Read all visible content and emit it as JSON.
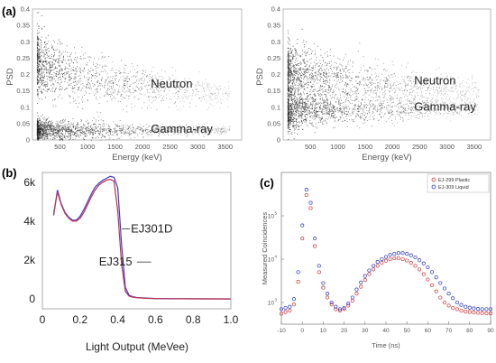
{
  "chart_data": [
    {
      "type": "scatter",
      "panel_label": "(a)",
      "xlabel": "Energy (keV)",
      "ylabel": "PSD",
      "xlim": [
        0,
        3800
      ],
      "ylim": [
        0,
        0.4
      ],
      "x_ticks": [
        "500",
        "1000",
        "1500",
        "2000",
        "2500",
        "3000",
        "3500"
      ],
      "x_tick_values": [
        500,
        1000,
        1500,
        2000,
        2500,
        3000,
        3500
      ],
      "y_ticks": [
        "0",
        "0.05",
        "0.1",
        "0.15",
        "0.2",
        "0.25",
        "0.3",
        "0.35",
        "0.4"
      ],
      "y_tick_values": [
        0,
        0.05,
        0.1,
        0.15,
        0.2,
        0.25,
        0.3,
        0.35,
        0.4
      ],
      "bands": [
        {
          "name": "Neutron",
          "center_start": 0.24,
          "center_end": 0.14,
          "spread_start": 0.055,
          "spread_end": 0.018,
          "point_count": 1500
        },
        {
          "name": "Gamma-ray",
          "center_start": 0.03,
          "center_end": 0.03,
          "spread_start": 0.02,
          "spread_end": 0.006,
          "point_count": 1700
        }
      ],
      "annotations": [
        {
          "text": "Neutron",
          "x": 2150,
          "y": 0.16
        },
        {
          "text": "Gamma-ray",
          "x": 2150,
          "y": 0.022
        }
      ]
    },
    {
      "type": "scatter",
      "xlabel": "Energy (keV)",
      "ylabel": "PSD",
      "xlim": [
        0,
        3800
      ],
      "ylim": [
        0,
        0.4
      ],
      "x_ticks": [
        "500",
        "1000",
        "1500",
        "2000",
        "2500",
        "3000",
        "3500"
      ],
      "x_tick_values": [
        500,
        1000,
        1500,
        2000,
        2500,
        3000,
        3500
      ],
      "y_ticks": [
        "0",
        "0.05",
        "0.1",
        "0.15",
        "0.2",
        "0.25",
        "0.3",
        "0.35",
        "0.4"
      ],
      "y_tick_values": [
        0,
        0.05,
        0.1,
        0.15,
        0.2,
        0.25,
        0.3,
        0.35,
        0.4
      ],
      "bands": [
        {
          "name": "Neutron",
          "center_start": 0.22,
          "center_end": 0.15,
          "spread_start": 0.05,
          "spread_end": 0.02,
          "point_count": 1500
        },
        {
          "name": "Gamma-ray",
          "center_start": 0.09,
          "center_end": 0.1,
          "spread_start": 0.035,
          "spread_end": 0.012,
          "point_count": 1700
        }
      ],
      "annotations": [
        {
          "text": "Neutron",
          "x": 2400,
          "y": 0.17
        },
        {
          "text": "Gamma-ray",
          "x": 2400,
          "y": 0.09
        }
      ]
    },
    {
      "type": "line",
      "panel_label": "(b)",
      "xlabel": "Light Output (MeVee)",
      "ylabel": "",
      "xlim": [
        0,
        1.0
      ],
      "ylim": [
        -500,
        6500
      ],
      "x_ticks": [
        "0",
        "0.2",
        "0.4",
        "0.6",
        "0.8",
        "1.0"
      ],
      "x_tick_values": [
        0,
        0.2,
        0.4,
        0.6,
        0.8,
        1.0
      ],
      "y_ticks": [
        "0",
        "2k",
        "4k",
        "6k"
      ],
      "y_tick_values": [
        0,
        2000,
        4000,
        6000
      ],
      "x": [
        0.06,
        0.08,
        0.1,
        0.12,
        0.14,
        0.16,
        0.18,
        0.2,
        0.22,
        0.24,
        0.26,
        0.28,
        0.3,
        0.32,
        0.34,
        0.36,
        0.38,
        0.4,
        0.42,
        0.44,
        0.46,
        0.48,
        0.5,
        0.55,
        0.6,
        0.7,
        0.8,
        0.9,
        1.0
      ],
      "series": [
        {
          "name": "EJ301D",
          "color": "#3b3bd4",
          "values": [
            4300,
            5600,
            4900,
            4450,
            4200,
            4050,
            4050,
            4250,
            4600,
            5000,
            5400,
            5750,
            5950,
            6100,
            6200,
            6300,
            6250,
            5700,
            2800,
            600,
            200,
            120,
            80,
            50,
            30,
            20,
            15,
            10,
            8
          ]
        },
        {
          "name": "EJ315",
          "color": "#c0304a",
          "values": [
            4400,
            5500,
            4850,
            4400,
            4150,
            4000,
            4000,
            4150,
            4450,
            4850,
            5250,
            5600,
            5850,
            6000,
            6100,
            6150,
            6050,
            4500,
            1800,
            400,
            150,
            100,
            70,
            40,
            25,
            18,
            12,
            9,
            7
          ]
        }
      ],
      "annotations": [
        {
          "text": "EJ301D",
          "x": 0.46,
          "y": 3600
        },
        {
          "text": "EJ315",
          "x": 0.3,
          "y": 1900
        }
      ]
    },
    {
      "type": "scatter",
      "panel_label": "(c)",
      "xlabel": "Time (ns)",
      "ylabel": "Measured Coincidences",
      "xlim": [
        -10,
        90
      ],
      "ylim_log10": [
        2.5,
        6
      ],
      "x_ticks": [
        "-10",
        "0",
        "10",
        "20",
        "30",
        "40",
        "50",
        "60",
        "70",
        "80",
        "90"
      ],
      "x_tick_values": [
        -10,
        0,
        10,
        20,
        30,
        40,
        50,
        60,
        70,
        80,
        90
      ],
      "y_ticks": [
        "10",
        "10",
        "10"
      ],
      "y_tick_exponents": [
        "3",
        "4",
        "5"
      ],
      "y_tick_values": [
        1000,
        10000,
        100000
      ],
      "legend": "top-right",
      "x": [
        -10,
        -8,
        -6,
        -4,
        -2,
        0,
        2,
        4,
        6,
        8,
        10,
        12,
        14,
        16,
        18,
        20,
        22,
        24,
        26,
        28,
        30,
        32,
        34,
        36,
        38,
        40,
        42,
        44,
        46,
        48,
        50,
        52,
        54,
        56,
        58,
        60,
        62,
        64,
        66,
        68,
        70,
        72,
        74,
        76,
        78,
        80,
        82,
        84,
        86,
        88,
        90
      ],
      "series": [
        {
          "name": "EJ-299 Plastic",
          "color": "#d23a3a",
          "values": [
            550,
            600,
            650,
            900,
            3000,
            30000,
            300000,
            150000,
            20000,
            5000,
            2200,
            1300,
            900,
            700,
            650,
            700,
            850,
            1100,
            1600,
            2300,
            3300,
            4500,
            5800,
            7000,
            8200,
            9200,
            10000,
            10500,
            10500,
            10000,
            9300,
            8200,
            7000,
            5800,
            4500,
            3400,
            2500,
            1800,
            1300,
            1000,
            850,
            750,
            700,
            650,
            620,
            600,
            590,
            580,
            570,
            560,
            560
          ]
        },
        {
          "name": "EJ-309 Liquid",
          "color": "#2f3fc9",
          "values": [
            700,
            750,
            800,
            1200,
            5000,
            60000,
            400000,
            200000,
            30000,
            7000,
            2800,
            1600,
            1000,
            800,
            700,
            750,
            950,
            1300,
            2000,
            2900,
            4100,
            5500,
            7000,
            8600,
            10000,
            11300,
            12500,
            13300,
            13800,
            13800,
            13300,
            12300,
            11000,
            9500,
            8000,
            6500,
            5000,
            3800,
            2800,
            2100,
            1600,
            1250,
            1000,
            880,
            800,
            760,
            730,
            710,
            700,
            700,
            700
          ]
        }
      ]
    }
  ]
}
